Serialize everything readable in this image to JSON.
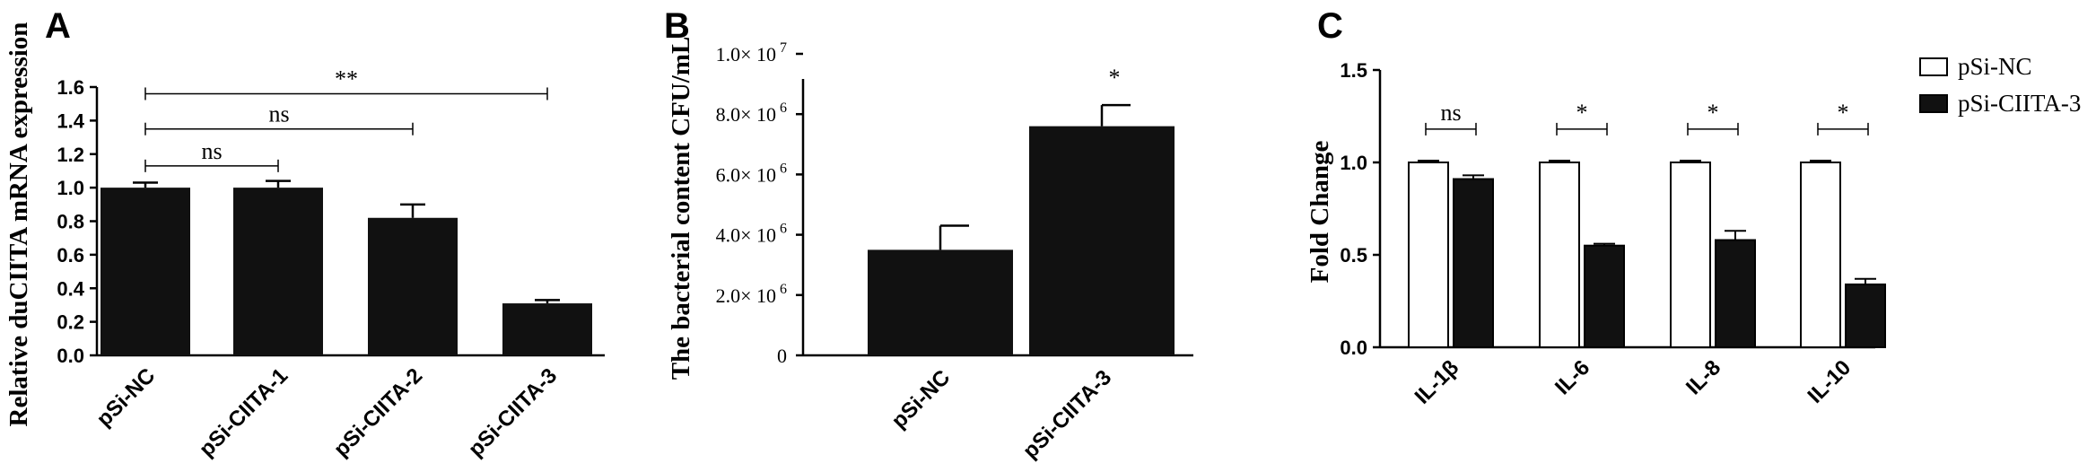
{
  "chart_data": [
    {
      "panel": "A",
      "type": "bar",
      "ylabel": "Relative duCIITA mRNA expression",
      "categories": [
        "pSi-NC",
        "pSi-CIITA-1",
        "pSi-CIITA-2",
        "pSi-CIITA-3"
      ],
      "values": [
        1.0,
        1.0,
        0.82,
        0.31
      ],
      "errors": [
        0.03,
        0.04,
        0.08,
        0.02
      ],
      "ylim": [
        0,
        1.6
      ],
      "yticks": [
        0.0,
        0.2,
        0.4,
        0.6,
        0.8,
        1.0,
        1.2,
        1.4,
        1.6
      ],
      "ytick_labels": [
        "0.0",
        "0.2",
        "0.4",
        "0.6",
        "0.8",
        "1.0",
        "1.2",
        "1.4",
        "1.6"
      ],
      "bar_color": "#111111",
      "grid": false,
      "annotations": [
        {
          "from": 0,
          "to": 1,
          "y": 1.13,
          "text": "ns"
        },
        {
          "from": 0,
          "to": 2,
          "y": 1.35,
          "text": "ns"
        },
        {
          "from": 0,
          "to": 3,
          "y": 1.56,
          "text": "**"
        }
      ]
    },
    {
      "panel": "B",
      "type": "bar",
      "ylabel": "The bacterial content  CFU/mL",
      "categories": [
        "pSi-NC",
        "pSi-CIITA-3"
      ],
      "values": [
        3500000,
        7600000
      ],
      "errors": [
        800000,
        700000
      ],
      "ylim": [
        0,
        10000000
      ],
      "yticks": [
        0,
        2000000,
        4000000,
        6000000,
        8000000,
        10000000
      ],
      "ytick_labels": [
        {
          "mantissa": "0",
          "exp": ""
        },
        {
          "mantissa": "2.0× 10",
          "exp": "6"
        },
        {
          "mantissa": "4.0× 10",
          "exp": "6"
        },
        {
          "mantissa": "6.0× 10",
          "exp": "6"
        },
        {
          "mantissa": "8.0× 10",
          "exp": "6"
        },
        {
          "mantissa": "1.0× 10",
          "exp": "7"
        }
      ],
      "bar_color": "#111111",
      "grid": false,
      "annotations": [
        {
          "bar": 1,
          "text": "*"
        }
      ]
    },
    {
      "panel": "C",
      "type": "bar",
      "ylabel": "Fold Change",
      "categories": [
        "IL-1β",
        "IL-6",
        "IL-8",
        "IL-10"
      ],
      "series": [
        {
          "name": "pSi-NC",
          "values": [
            1.0,
            1.0,
            1.0,
            1.0
          ],
          "errors": [
            0.01,
            0.01,
            0.01,
            0.01
          ],
          "color": "#ffffff"
        },
        {
          "name": "pSi-CIITA-3",
          "values": [
            0.91,
            0.55,
            0.58,
            0.34
          ],
          "errors": [
            0.02,
            0.01,
            0.05,
            0.03
          ],
          "color": "#111111"
        }
      ],
      "ylim": [
        0,
        1.5
      ],
      "yticks": [
        0.0,
        0.5,
        1.0,
        1.5
      ],
      "ytick_labels": [
        "0.0",
        "0.5",
        "1.0",
        "1.5"
      ],
      "grid": false,
      "legend": "top-right",
      "annotations": [
        {
          "group": 0,
          "text": "ns",
          "y": 1.18
        },
        {
          "group": 1,
          "text": "*",
          "y": 1.18
        },
        {
          "group": 2,
          "text": "*",
          "y": 1.18
        },
        {
          "group": 3,
          "text": "*",
          "y": 1.18
        }
      ]
    }
  ]
}
